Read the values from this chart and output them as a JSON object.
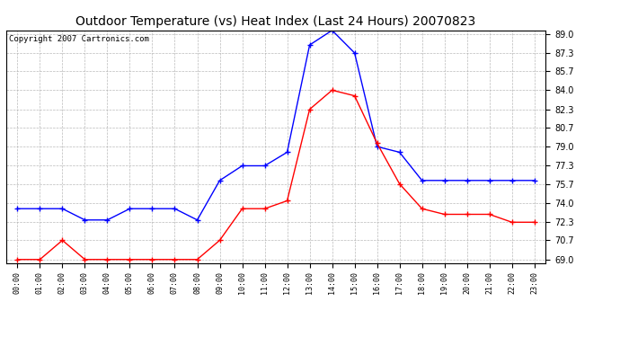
{
  "title": "Outdoor Temperature (vs) Heat Index (Last 24 Hours) 20070823",
  "copyright": "Copyright 2007 Cartronics.com",
  "x_labels": [
    "00:00",
    "01:00",
    "02:00",
    "03:00",
    "04:00",
    "05:00",
    "06:00",
    "07:00",
    "08:00",
    "09:00",
    "10:00",
    "11:00",
    "12:00",
    "13:00",
    "14:00",
    "15:00",
    "16:00",
    "17:00",
    "18:00",
    "19:00",
    "20:00",
    "21:00",
    "22:00",
    "23:00"
  ],
  "blue_data": [
    73.5,
    73.5,
    73.5,
    72.5,
    72.5,
    73.5,
    73.5,
    73.5,
    72.5,
    76.0,
    77.3,
    77.3,
    78.5,
    88.0,
    89.3,
    87.3,
    79.0,
    78.5,
    76.0,
    76.0,
    76.0,
    76.0,
    76.0,
    76.0
  ],
  "red_data": [
    69.0,
    69.0,
    70.7,
    69.0,
    69.0,
    69.0,
    69.0,
    69.0,
    69.0,
    70.7,
    73.5,
    73.5,
    74.2,
    82.3,
    84.0,
    83.5,
    79.3,
    75.7,
    73.5,
    73.0,
    73.0,
    73.0,
    72.3,
    72.3
  ],
  "y_ticks": [
    69.0,
    70.7,
    72.3,
    74.0,
    75.7,
    77.3,
    79.0,
    80.7,
    82.3,
    84.0,
    85.7,
    87.3,
    89.0
  ],
  "ylim": [
    69.0,
    89.0
  ],
  "blue_color": "#0000ff",
  "red_color": "#ff0000",
  "bg_color": "#ffffff",
  "grid_color": "#aaaaaa",
  "title_fontsize": 10,
  "copyright_fontsize": 6.5
}
